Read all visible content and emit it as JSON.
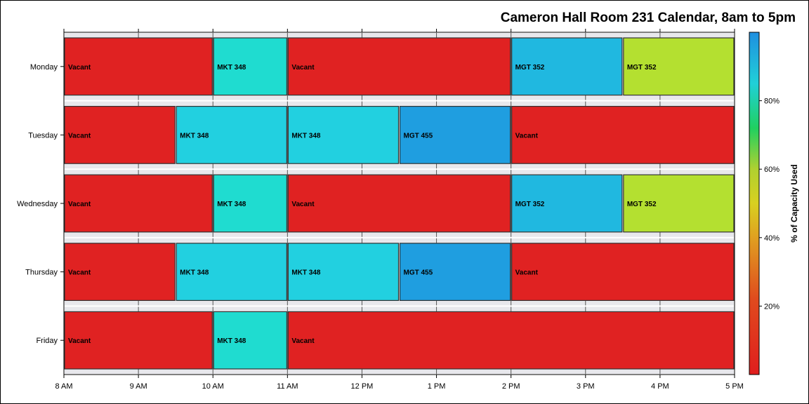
{
  "chart_data": {
    "type": "bar",
    "orientation": "horizontal-timeline",
    "title": "Cameron Hall Room 231 Calendar, 8am to 5pm",
    "categories": [
      "Monday",
      "Tuesday",
      "Wednesday",
      "Thursday",
      "Friday"
    ],
    "x_ticks": [
      "8 AM",
      "9 AM",
      "10 AM",
      "11 AM",
      "12 PM",
      "1 PM",
      "2 PM",
      "3 PM",
      "4 PM",
      "5 PM"
    ],
    "xlim": [
      8,
      17
    ],
    "grid": true,
    "colorbar": {
      "title": "% of Capacity Used",
      "ticks": [
        "20%",
        "40%",
        "60%",
        "80%"
      ],
      "tick_values": [
        20,
        40,
        60,
        80
      ],
      "range": [
        0,
        100
      ],
      "placement": "right"
    },
    "rows": [
      {
        "day": "Monday",
        "segments": [
          {
            "label": "Vacant",
            "start": 8,
            "end": 10,
            "capacity": 0
          },
          {
            "label": "MKT 348",
            "start": 10,
            "end": 11,
            "capacity": 78
          },
          {
            "label": "Vacant",
            "start": 11,
            "end": 14,
            "capacity": 0
          },
          {
            "label": "MGT 352",
            "start": 14,
            "end": 15.5,
            "capacity": 88
          },
          {
            "label": "MGT 352",
            "start": 15.5,
            "end": 17,
            "capacity": 62
          }
        ]
      },
      {
        "day": "Tuesday",
        "segments": [
          {
            "label": "Vacant",
            "start": 8,
            "end": 9.5,
            "capacity": 0
          },
          {
            "label": "MKT 348",
            "start": 9.5,
            "end": 11,
            "capacity": 84
          },
          {
            "label": "MKT 348",
            "start": 11,
            "end": 12.5,
            "capacity": 84
          },
          {
            "label": "MGT 455",
            "start": 12.5,
            "end": 14,
            "capacity": 94
          },
          {
            "label": "Vacant",
            "start": 14,
            "end": 17,
            "capacity": 0
          }
        ]
      },
      {
        "day": "Wednesday",
        "segments": [
          {
            "label": "Vacant",
            "start": 8,
            "end": 10,
            "capacity": 0
          },
          {
            "label": "MKT 348",
            "start": 10,
            "end": 11,
            "capacity": 78
          },
          {
            "label": "Vacant",
            "start": 11,
            "end": 14,
            "capacity": 0
          },
          {
            "label": "MGT 352",
            "start": 14,
            "end": 15.5,
            "capacity": 88
          },
          {
            "label": "MGT 352",
            "start": 15.5,
            "end": 17,
            "capacity": 62
          }
        ]
      },
      {
        "day": "Thursday",
        "segments": [
          {
            "label": "Vacant",
            "start": 8,
            "end": 9.5,
            "capacity": 0
          },
          {
            "label": "MKT 348",
            "start": 9.5,
            "end": 11,
            "capacity": 84
          },
          {
            "label": "MKT 348",
            "start": 11,
            "end": 12.5,
            "capacity": 84
          },
          {
            "label": "MGT 455",
            "start": 12.5,
            "end": 14,
            "capacity": 94
          },
          {
            "label": "Vacant",
            "start": 14,
            "end": 17,
            "capacity": 0
          }
        ]
      },
      {
        "day": "Friday",
        "segments": [
          {
            "label": "Vacant",
            "start": 8,
            "end": 10,
            "capacity": 0
          },
          {
            "label": "MKT 348",
            "start": 10,
            "end": 11,
            "capacity": 78
          },
          {
            "label": "Vacant",
            "start": 11,
            "end": 17,
            "capacity": 0
          }
        ]
      }
    ]
  },
  "colors": {
    "vacant": "#e02222",
    "mkt348_mon": "#1fdcd0",
    "mkt348_tue": "#22d0e0",
    "mgt352_blue": "#20b8e0",
    "mgt352_green": "#b4e030",
    "mgt455": "#1f9ee0",
    "band_bg": "#e8e8ec"
  }
}
